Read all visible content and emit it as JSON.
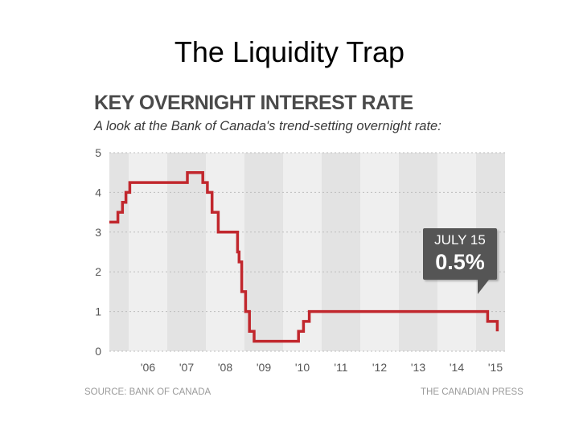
{
  "slide": {
    "title": "The Liquidity Trap"
  },
  "chart_data": {
    "type": "line",
    "title": "KEY OVERNIGHT INTEREST RATE",
    "subtitle": "A look at the Bank of Canada's trend-setting overnight rate:",
    "xlabel": "",
    "ylabel": "",
    "ylim": [
      0,
      5
    ],
    "xlim": [
      2005.5,
      2015.75
    ],
    "yticks": [
      "0",
      "1",
      "2",
      "3",
      "4",
      "5"
    ],
    "xticks": [
      "'06",
      "'07",
      "'08",
      "'09",
      "'10",
      "'11",
      "'12",
      "'13",
      "'14",
      "'15"
    ],
    "series": [
      {
        "name": "Overnight rate",
        "x": [
          2005.5,
          2005.72,
          2005.72,
          2005.84,
          2005.84,
          2005.93,
          2005.93,
          2006.03,
          2006.03,
          2006.12,
          2006.12,
          2006.2,
          2006.2,
          2006.42,
          2006.42,
          2007.52,
          2007.52,
          2007.92,
          2007.92,
          2008.04,
          2008.04,
          2008.16,
          2008.16,
          2008.32,
          2008.32,
          2008.82,
          2008.82,
          2008.86,
          2008.86,
          2008.93,
          2008.93,
          2009.03,
          2009.03,
          2009.13,
          2009.13,
          2009.25,
          2009.25,
          2009.83,
          2009.83,
          2010.4,
          2010.4,
          2010.53,
          2010.53,
          2010.68,
          2010.68,
          2014.5,
          2014.5,
          2015.3,
          2015.3,
          2015.55,
          2015.55
        ],
        "y": [
          3.25,
          3.25,
          3.5,
          3.5,
          3.75,
          3.75,
          4.0,
          4.0,
          4.25,
          4.25,
          4.25,
          4.25,
          4.25,
          4.25,
          4.25,
          4.25,
          4.5,
          4.5,
          4.25,
          4.25,
          4.0,
          4.0,
          3.5,
          3.5,
          3.0,
          3.0,
          2.5,
          2.5,
          2.25,
          2.25,
          1.5,
          1.5,
          1.0,
          1.0,
          0.5,
          0.5,
          0.25,
          0.25,
          0.25,
          0.25,
          0.5,
          0.5,
          0.75,
          0.75,
          1.0,
          1.0,
          1.0,
          1.0,
          0.75,
          0.75,
          0.5
        ],
        "color": "#c1272d"
      }
    ],
    "annotation": {
      "date": "JULY 15",
      "value": "0.5%"
    },
    "source": "SOURCE: BANK OF CANADA",
    "credit": "THE CANADIAN PRESS",
    "colors": {
      "band_dark": "#e3e3e3",
      "band_light": "#efefef",
      "gridline": "#bdbdbd",
      "callout": "#555555"
    }
  }
}
